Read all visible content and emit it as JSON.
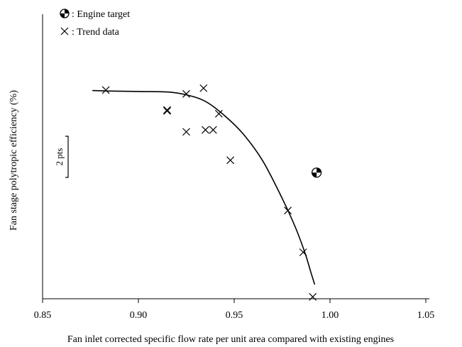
{
  "chart_data": {
    "type": "scatter",
    "title": "",
    "xlabel": "Fan inlet corrected specific flow rate per unit area compared with existing engines",
    "ylabel": "Fan stage polytropic efficiency (%)",
    "xlim": [
      0.85,
      1.05
    ],
    "x_ticks": [
      "0.85",
      "0.90",
      "0.95",
      "1.00",
      "1.05"
    ],
    "ylim": [
      0,
      30
    ],
    "y_ticks_shown": false,
    "grid": false,
    "legend": {
      "placement": "top-left",
      "entries": [
        {
          "symbol": "quartered-circle",
          "label": ": Engine target"
        },
        {
          "symbol": "x-cross",
          "label": ": Trend data"
        }
      ]
    },
    "scale_bar": {
      "label": "2 pts",
      "value": 2
    },
    "series": [
      {
        "name": "Trend data",
        "marker": "x-cross",
        "points": [
          {
            "x": 0.883,
            "y": 22.0
          },
          {
            "x": 0.915,
            "y": 19.8
          },
          {
            "x": 0.915,
            "y": 19.9
          },
          {
            "x": 0.925,
            "y": 21.6
          },
          {
            "x": 0.925,
            "y": 17.6
          },
          {
            "x": 0.934,
            "y": 22.2
          },
          {
            "x": 0.935,
            "y": 17.8
          },
          {
            "x": 0.939,
            "y": 17.8
          },
          {
            "x": 0.942,
            "y": 19.5
          },
          {
            "x": 0.948,
            "y": 14.6
          },
          {
            "x": 0.978,
            "y": 9.3
          },
          {
            "x": 0.986,
            "y": 4.9
          },
          {
            "x": 0.991,
            "y": 0.2
          }
        ]
      },
      {
        "name": "Engine target",
        "marker": "quartered-circle",
        "points": [
          {
            "x": 0.993,
            "y": 13.3
          }
        ]
      },
      {
        "name": "Trend curve",
        "type": "line",
        "points": [
          {
            "x": 0.876,
            "y": 21.95
          },
          {
            "x": 0.885,
            "y": 21.9
          },
          {
            "x": 0.9,
            "y": 21.85
          },
          {
            "x": 0.915,
            "y": 21.8
          },
          {
            "x": 0.925,
            "y": 21.5
          },
          {
            "x": 0.935,
            "y": 20.8
          },
          {
            "x": 0.945,
            "y": 19.3
          },
          {
            "x": 0.955,
            "y": 17.3
          },
          {
            "x": 0.965,
            "y": 14.5
          },
          {
            "x": 0.975,
            "y": 10.6
          },
          {
            "x": 0.982,
            "y": 7.5
          },
          {
            "x": 0.987,
            "y": 4.8
          },
          {
            "x": 0.99,
            "y": 2.8
          },
          {
            "x": 0.992,
            "y": 1.5
          }
        ]
      }
    ]
  }
}
